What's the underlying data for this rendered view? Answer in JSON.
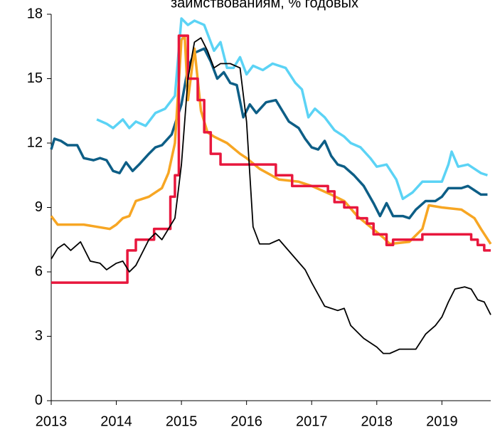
{
  "chart_data": {
    "type": "line",
    "title": "заимствованиям, % годовых",
    "xlim": [
      2013,
      2019.75
    ],
    "xticks": [
      2013,
      2014,
      2015,
      2016,
      2017,
      2018,
      2019
    ],
    "ylim": [
      0,
      18
    ],
    "yticks": [
      0,
      3,
      6,
      9,
      12,
      15,
      18
    ],
    "grid": false,
    "series": [
      {
        "color": "#5bd3f5",
        "width": 3.5,
        "x": [
          2013.7,
          2013.85,
          2013.95,
          2014.1,
          2014.2,
          2014.3,
          2014.45,
          2014.6,
          2014.75,
          2014.9,
          2015.0,
          2015.1,
          2015.2,
          2015.35,
          2015.5,
          2015.6,
          2015.7,
          2015.8,
          2015.9,
          2016.0,
          2016.1,
          2016.25,
          2016.4,
          2016.6,
          2016.75,
          2016.85,
          2016.95,
          2017.05,
          2017.2,
          2017.35,
          2017.5,
          2017.6,
          2017.75,
          2017.9,
          2018.0,
          2018.15,
          2018.3,
          2018.4,
          2018.55,
          2018.7,
          2018.85,
          2019.0,
          2019.1,
          2019.15,
          2019.25,
          2019.4,
          2019.5,
          2019.6,
          2019.7
        ],
        "values": [
          13.1,
          12.9,
          12.7,
          13.1,
          12.7,
          13.0,
          12.8,
          13.4,
          13.6,
          14.2,
          17.8,
          17.5,
          17.7,
          17.5,
          16.3,
          16.7,
          15.5,
          15.5,
          16.0,
          15.2,
          15.6,
          15.4,
          15.7,
          15.5,
          14.8,
          14.5,
          13.2,
          13.6,
          13.2,
          12.6,
          12.3,
          12.0,
          11.8,
          11.3,
          10.9,
          11.0,
          10.3,
          9.4,
          9.7,
          10.2,
          10.2,
          10.2,
          11.0,
          11.6,
          10.9,
          11.0,
          10.8,
          10.6,
          10.5
        ]
      },
      {
        "color": "#0d5e86",
        "width": 3.5,
        "x": [
          2013.0,
          2013.05,
          2013.15,
          2013.25,
          2013.4,
          2013.5,
          2013.65,
          2013.75,
          2013.85,
          2013.95,
          2014.05,
          2014.15,
          2014.25,
          2014.35,
          2014.5,
          2014.6,
          2014.7,
          2014.85,
          2015.0,
          2015.1,
          2015.2,
          2015.35,
          2015.45,
          2015.55,
          2015.65,
          2015.75,
          2015.85,
          2015.95,
          2016.05,
          2016.15,
          2016.3,
          2016.45,
          2016.55,
          2016.65,
          2016.8,
          2016.9,
          2017.0,
          2017.1,
          2017.2,
          2017.3,
          2017.4,
          2017.5,
          2017.65,
          2017.8,
          2017.95,
          2018.05,
          2018.15,
          2018.25,
          2018.4,
          2018.5,
          2018.6,
          2018.75,
          2018.9,
          2019.0,
          2019.1,
          2019.3,
          2019.4,
          2019.5,
          2019.6,
          2019.7
        ],
        "values": [
          11.7,
          12.2,
          12.1,
          11.9,
          11.9,
          11.3,
          11.2,
          11.3,
          11.2,
          10.7,
          10.6,
          11.1,
          10.7,
          11.0,
          11.5,
          11.8,
          11.9,
          12.4,
          13.8,
          15.5,
          16.2,
          16.4,
          15.8,
          15.0,
          15.3,
          14.8,
          14.7,
          13.2,
          13.8,
          13.4,
          13.9,
          14.0,
          13.5,
          13.0,
          12.7,
          12.2,
          11.8,
          11.7,
          12.1,
          11.4,
          11.0,
          10.9,
          10.5,
          10.0,
          9.2,
          8.6,
          9.2,
          8.6,
          8.6,
          8.5,
          8.9,
          9.3,
          9.3,
          9.5,
          9.9,
          9.9,
          10.0,
          9.8,
          9.6,
          9.6
        ]
      },
      {
        "color": "#f7a623",
        "width": 3.5,
        "x": [
          2013.0,
          2013.1,
          2013.5,
          2013.9,
          2014.0,
          2014.1,
          2014.2,
          2014.3,
          2014.5,
          2014.7,
          2014.8,
          2014.9,
          2015.0,
          2015.05,
          2015.1,
          2015.2,
          2015.3,
          2015.4,
          2015.5,
          2015.7,
          2015.9,
          2016.0,
          2016.2,
          2016.5,
          2016.8,
          2017.0,
          2017.3,
          2017.5,
          2017.7,
          2017.9,
          2018.1,
          2018.2,
          2018.5,
          2018.7,
          2018.8,
          2019.0,
          2019.3,
          2019.5,
          2019.6,
          2019.75
        ],
        "values": [
          8.6,
          8.2,
          8.2,
          8.0,
          8.2,
          8.5,
          8.6,
          9.3,
          9.5,
          9.9,
          10.6,
          12.0,
          16.8,
          17.0,
          14.0,
          16.4,
          13.5,
          12.5,
          12.3,
          12.0,
          11.5,
          11.3,
          10.8,
          10.3,
          10.2,
          10.0,
          9.6,
          9.3,
          8.6,
          8.1,
          7.6,
          7.3,
          7.4,
          8.0,
          9.1,
          9.0,
          8.9,
          8.5,
          8.0,
          7.3
        ]
      },
      {
        "color": "#e8173d",
        "width": 3.5,
        "x": [
          2013.0,
          2014.17,
          2014.17,
          2014.3,
          2014.3,
          2014.58,
          2014.58,
          2014.83,
          2014.83,
          2014.9,
          2014.9,
          2014.96,
          2014.96,
          2015.1,
          2015.1,
          2015.25,
          2015.25,
          2015.35,
          2015.35,
          2015.45,
          2015.45,
          2015.6,
          2015.6,
          2016.45,
          2016.45,
          2016.7,
          2016.7,
          2017.25,
          2017.25,
          2017.35,
          2017.35,
          2017.5,
          2017.5,
          2017.7,
          2017.7,
          2017.85,
          2017.85,
          2017.95,
          2017.95,
          2018.15,
          2018.15,
          2018.25,
          2018.25,
          2018.7,
          2018.7,
          2018.95,
          2018.95,
          2019.45,
          2019.45,
          2019.55,
          2019.55,
          2019.65,
          2019.65,
          2019.75
        ],
        "values": [
          5.5,
          5.5,
          7.0,
          7.0,
          7.5,
          7.5,
          8.0,
          8.0,
          9.5,
          9.5,
          10.5,
          10.5,
          17.0,
          17.0,
          15.0,
          15.0,
          14.0,
          14.0,
          12.5,
          12.5,
          11.5,
          11.5,
          11.0,
          11.0,
          10.5,
          10.5,
          10.0,
          10.0,
          9.75,
          9.75,
          9.25,
          9.25,
          9.0,
          9.0,
          8.5,
          8.5,
          8.25,
          8.25,
          7.75,
          7.75,
          7.25,
          7.25,
          7.5,
          7.5,
          7.75,
          7.75,
          7.75,
          7.75,
          7.5,
          7.5,
          7.25,
          7.25,
          7.0,
          7.0
        ]
      },
      {
        "color": "#000000",
        "width": 1.8,
        "x": [
          2013.0,
          2013.1,
          2013.2,
          2013.3,
          2013.45,
          2013.6,
          2013.75,
          2013.85,
          2014.0,
          2014.1,
          2014.2,
          2014.3,
          2014.5,
          2014.6,
          2014.7,
          2014.8,
          2014.9,
          2015.0,
          2015.1,
          2015.2,
          2015.3,
          2015.4,
          2015.5,
          2015.6,
          2015.75,
          2015.9,
          2016.0,
          2016.1,
          2016.2,
          2016.35,
          2016.5,
          2016.7,
          2016.9,
          2017.0,
          2017.2,
          2017.4,
          2017.5,
          2017.6,
          2017.8,
          2018.0,
          2018.1,
          2018.2,
          2018.35,
          2018.5,
          2018.6,
          2018.75,
          2018.9,
          2019.0,
          2019.1,
          2019.2,
          2019.35,
          2019.45,
          2019.55,
          2019.65,
          2019.75
        ],
        "values": [
          6.6,
          7.1,
          7.3,
          7.0,
          7.4,
          6.5,
          6.4,
          6.1,
          6.4,
          6.5,
          6.0,
          6.3,
          7.5,
          7.8,
          7.5,
          8.0,
          8.5,
          11.0,
          15.0,
          16.7,
          16.9,
          16.3,
          15.5,
          15.7,
          15.7,
          15.5,
          13.0,
          8.1,
          7.3,
          7.3,
          7.5,
          6.8,
          6.1,
          5.5,
          4.4,
          4.2,
          4.3,
          3.5,
          2.9,
          2.5,
          2.2,
          2.2,
          2.4,
          2.4,
          2.4,
          3.1,
          3.5,
          3.9,
          4.6,
          5.2,
          5.3,
          5.2,
          4.7,
          4.6,
          4.0
        ]
      }
    ]
  }
}
